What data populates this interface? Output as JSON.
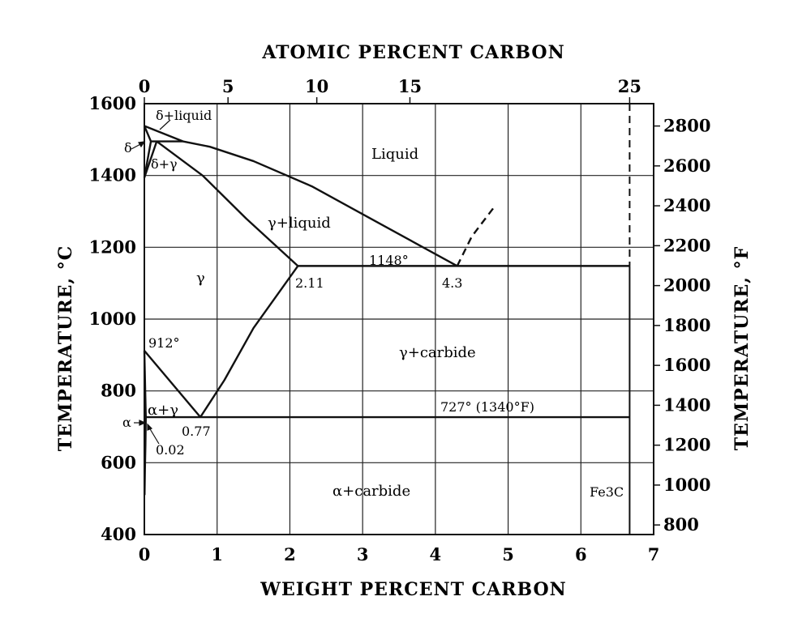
{
  "chart_data": {
    "type": "line",
    "title_top": "ATOMIC PERCENT CARBON",
    "xlabel": "WEIGHT PERCENT CARBON",
    "ylabel_left": "TEMPERATURE, °C",
    "ylabel_right": "TEMPERATURE, °F",
    "xlim": [
      0,
      7
    ],
    "ylim": [
      400,
      1600
    ],
    "x_ticks": [
      "0",
      "1",
      "2",
      "3",
      "4",
      "5",
      "6",
      "7"
    ],
    "x_tick_values": [
      0,
      1,
      2,
      3,
      4,
      5,
      6,
      7
    ],
    "y_ticks": [
      "400",
      "600",
      "800",
      "1000",
      "1200",
      "1400",
      "1600"
    ],
    "y_tick_values": [
      400,
      600,
      800,
      1000,
      1200,
      1400,
      1600
    ],
    "top_ticks": [
      "0",
      "5",
      "10",
      "15",
      "25"
    ],
    "top_tick_wt": [
      0,
      1.15,
      2.37,
      3.65,
      6.67
    ],
    "right_ticks": [
      "800",
      "1000",
      "1200",
      "1400",
      "1600",
      "1800",
      "2000",
      "2200",
      "2400",
      "2600",
      "2800"
    ],
    "right_tick_values": [
      800,
      1000,
      1200,
      1400,
      1600,
      1800,
      2000,
      2200,
      2400,
      2600,
      2800
    ],
    "grid": true,
    "series": [
      {
        "name": "liquidus",
        "x": [
          0.53,
          0.9,
          1.5,
          2.3,
          3.2,
          4.3
        ],
        "y": [
          1495,
          1480,
          1440,
          1370,
          1270,
          1148
        ],
        "style": "solid"
      },
      {
        "name": "delta-liquid upper",
        "x": [
          0,
          0.53
        ],
        "y": [
          1538,
          1495
        ],
        "style": "solid"
      },
      {
        "name": "delta-liquid lower",
        "x": [
          0,
          0.09
        ],
        "y": [
          1538,
          1495
        ],
        "style": "solid"
      },
      {
        "name": "peritectic",
        "x": [
          0.09,
          0.53
        ],
        "y": [
          1495,
          1495
        ],
        "style": "solid"
      },
      {
        "name": "delta solvus",
        "x": [
          0,
          0.09
        ],
        "y": [
          1394,
          1495
        ],
        "style": "solid"
      },
      {
        "name": "gamma boundary",
        "x": [
          0,
          0.17
        ],
        "y": [
          1394,
          1495
        ],
        "style": "solid"
      },
      {
        "name": "solidus",
        "x": [
          0.17,
          0.8,
          1.4,
          2.11
        ],
        "y": [
          1495,
          1400,
          1280,
          1148
        ],
        "style": "solid"
      },
      {
        "name": "eutectic",
        "x": [
          2.11,
          6.67
        ],
        "y": [
          1148,
          1148
        ],
        "style": "solid"
      },
      {
        "name": "Acm",
        "x": [
          0.77,
          1.1,
          1.5,
          2.11
        ],
        "y": [
          727,
          830,
          975,
          1148
        ],
        "style": "solid"
      },
      {
        "name": "A3",
        "x": [
          0,
          0.77
        ],
        "y": [
          912,
          727
        ],
        "style": "solid"
      },
      {
        "name": "alpha-gamma boundary",
        "x": [
          0,
          0.02
        ],
        "y": [
          912,
          727
        ],
        "style": "solid"
      },
      {
        "name": "eutectoid",
        "x": [
          0.02,
          6.67
        ],
        "y": [
          727,
          727
        ],
        "style": "solid"
      },
      {
        "name": "alpha solvus",
        "x": [
          0.02,
          0.015,
          0.008,
          0.003
        ],
        "y": [
          727,
          650,
          580,
          510
        ],
        "style": "solid"
      },
      {
        "name": "cementite liquidus",
        "x": [
          4.3,
          4.5,
          4.8
        ],
        "y": [
          1148,
          1230,
          1310
        ],
        "style": "dashed"
      },
      {
        "name": "Fe3C line",
        "x": [
          6.67,
          6.67
        ],
        "y": [
          400,
          1600
        ],
        "style": "dashed-top"
      }
    ],
    "region_labels": [
      "Liquid",
      "γ+liquid",
      "γ",
      "γ+carbide",
      "α+γ",
      "α+carbide",
      "δ+liquid",
      "δ+γ",
      "δ",
      "α",
      "Fe3C"
    ],
    "point_labels": [
      "1148°",
      "2.11",
      "4.3",
      "912°",
      "0.77",
      "0.02",
      "727° (1340°F)"
    ]
  }
}
